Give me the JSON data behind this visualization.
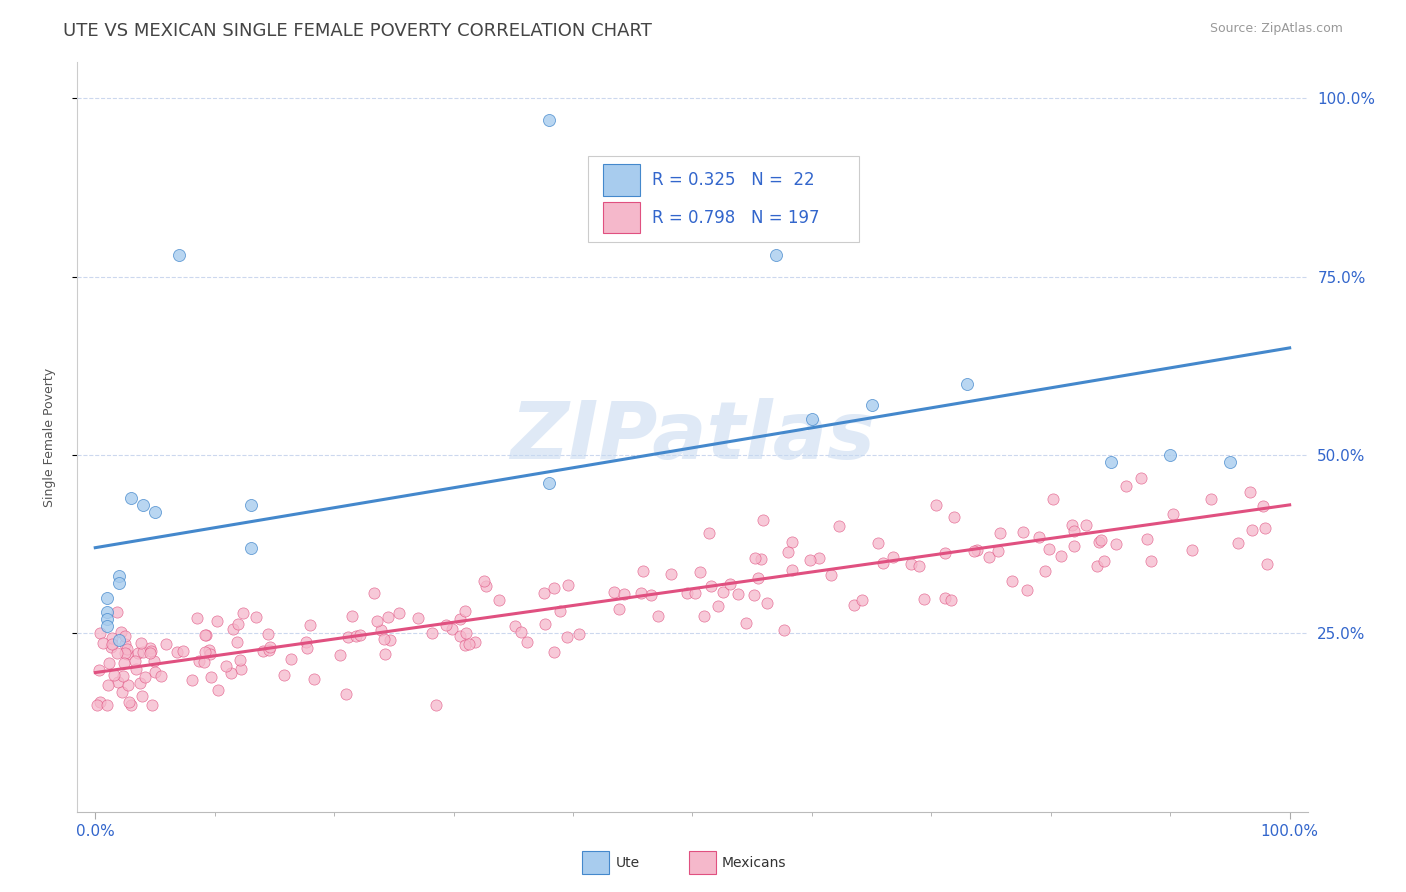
{
  "title": "UTE VS MEXICAN SINGLE FEMALE POVERTY CORRELATION CHART",
  "source_text": "Source: ZipAtlas.com",
  "ylabel": "Single Female Poverty",
  "watermark": "ZIPatlas",
  "ute_R": "0.325",
  "ute_N": "22",
  "mex_R": "0.798",
  "mex_N": "197",
  "ute_color": "#a8ccee",
  "mex_color": "#f5b8cb",
  "ute_line_color": "#4488cc",
  "mex_line_color": "#e05080",
  "background_color": "#ffffff",
  "grid_color": "#ccd8ee",
  "title_color": "#444444",
  "RN_color": "#3366cc",
  "ytick_color": "#3366cc",
  "xtick_color": "#3366cc",
  "ute_line_x0": 0.0,
  "ute_line_y0": 0.37,
  "ute_line_x1": 1.0,
  "ute_line_y1": 0.65,
  "mex_line_x0": 0.0,
  "mex_line_y0": 0.195,
  "mex_line_x1": 1.0,
  "mex_line_y1": 0.43,
  "ylim_low": 0.0,
  "ylim_high": 1.05,
  "xlim_low": -0.015,
  "xlim_high": 1.015,
  "yticks": [
    0.25,
    0.5,
    0.75,
    1.0
  ],
  "ytick_labels": [
    "25.0%",
    "50.0%",
    "75.0%",
    "100.0%"
  ],
  "title_fontsize": 13,
  "axis_label_fontsize": 9,
  "tick_fontsize": 11,
  "legend_fontsize": 12,
  "source_fontsize": 9
}
